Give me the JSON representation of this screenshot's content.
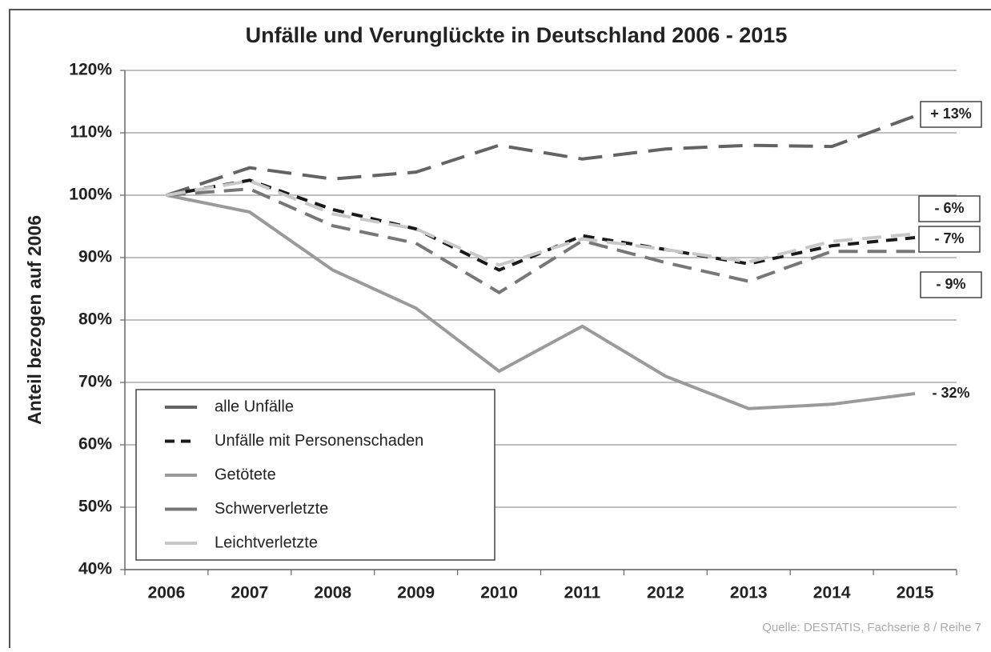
{
  "chart_data": {
    "type": "line",
    "title": "Unfälle und Verunglückte in Deutschland 2006 - 2015",
    "y_axis_label": "Anteil bezogen auf 2006",
    "source": "Quelle: DESTATIS, Fachserie 8 / Reihe 7",
    "categories": [
      "2006",
      "2007",
      "2008",
      "2009",
      "2010",
      "2011",
      "2012",
      "2013",
      "2014",
      "2015"
    ],
    "ylim": [
      40,
      120
    ],
    "yticks": [
      {
        "value": 40,
        "label": "40%"
      },
      {
        "value": 50,
        "label": "50%"
      },
      {
        "value": 60,
        "label": "60%"
      },
      {
        "value": 70,
        "label": "70%"
      },
      {
        "value": 80,
        "label": "80%"
      },
      {
        "value": 90,
        "label": "90%"
      },
      {
        "value": 100,
        "label": "100%"
      },
      {
        "value": 110,
        "label": "110%"
      },
      {
        "value": 120,
        "label": "120%"
      }
    ],
    "grid": true,
    "legend": "bottom-left",
    "series": [
      {
        "name": "alle Unfälle",
        "color": "#636363",
        "style": "long-dash",
        "values": [
          100,
          104.4,
          102.6,
          103.7,
          108,
          105.8,
          107.4,
          108,
          107.8,
          112.7
        ]
      },
      {
        "name": "Unfälle mit Personenschaden",
        "color": "#1a1a1a",
        "style": "short-dash",
        "values": [
          100,
          102.4,
          97.7,
          94.6,
          88,
          93.5,
          91.3,
          89,
          91.9,
          93.2
        ]
      },
      {
        "name": "Getötete",
        "color": "#9a9a9a",
        "style": "solid",
        "values": [
          100,
          97.3,
          88,
          81.9,
          71.8,
          79,
          71,
          65.8,
          66.5,
          68.2
        ]
      },
      {
        "name": "Schwerverletzte",
        "color": "#777777",
        "style": "dash",
        "values": [
          100,
          101,
          95.1,
          92.3,
          84.4,
          92.7,
          89.2,
          86.2,
          91,
          91
        ]
      },
      {
        "name": "Leichtverletzte",
        "color": "#c8c8c8",
        "style": "dash",
        "values": [
          100,
          102.3,
          97,
          94.6,
          88.8,
          93,
          91.3,
          89.3,
          92.6,
          93.8
        ]
      }
    ],
    "annotations": [
      "+ 13%",
      "- 6%",
      "- 7%",
      "- 9%",
      "- 32%"
    ]
  }
}
